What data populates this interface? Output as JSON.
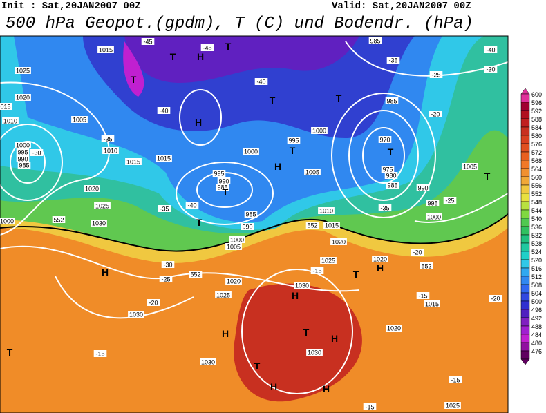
{
  "header": {
    "init": "Init : Sat,20JAN2007 00Z",
    "valid": "Valid: Sat,20JAN2007 00Z",
    "title": "500 hPa Geopot.(gpdm), T (C) und Bodendr. (hPa)"
  },
  "colorbar": {
    "levels": [
      600,
      596,
      592,
      588,
      584,
      580,
      576,
      572,
      568,
      564,
      560,
      556,
      552,
      548,
      544,
      540,
      536,
      532,
      528,
      524,
      520,
      516,
      512,
      508,
      504,
      500,
      496,
      492,
      488,
      484,
      480,
      476
    ],
    "colors": [
      "#e0309a",
      "#a00030",
      "#b01020",
      "#c02020",
      "#c83020",
      "#d84020",
      "#e05020",
      "#e86020",
      "#f07828",
      "#f09030",
      "#f0a838",
      "#f0c840",
      "#e8e040",
      "#b8e040",
      "#80d840",
      "#50c850",
      "#30c060",
      "#20c080",
      "#20c8a0",
      "#20d0c8",
      "#30c8e8",
      "#30a8f0",
      "#3088f0",
      "#3068f0",
      "#3048e0",
      "#3030d0",
      "#5020c0",
      "#8020c0",
      "#a020d0",
      "#c020d0",
      "#9010a0",
      "#600060"
    ]
  },
  "map": {
    "labels": [
      "1015",
      "1025",
      "1020",
      "015",
      "1010",
      "1005",
      "1000",
      "995",
      "990",
      "985",
      "1010",
      "1015",
      "1015",
      "1020",
      "1025",
      "1030",
      "1000",
      "-45",
      "-45",
      "-40",
      "-40",
      "-35",
      "-30",
      "-35",
      "-40",
      "-30",
      "-25",
      "-20",
      "-15",
      "1030",
      "1025",
      "1020",
      "1005",
      "1000",
      "990",
      "985",
      "995",
      "990",
      "985",
      "1000",
      "995",
      "1000",
      "1005",
      "1010",
      "1015",
      "1020",
      "1025",
      "1030",
      "1030",
      "1030",
      "1020",
      "1015",
      "1020",
      "985",
      "985",
      "970",
      "975",
      "980",
      "985",
      "990",
      "995",
      "1000",
      "1005",
      "1025",
      "552",
      "552",
      "552",
      "552",
      "-35",
      "-25",
      "-20",
      "-35",
      "-25",
      "-20",
      "-15",
      "-15",
      "-15",
      "-15",
      "-40",
      "-30",
      "-20",
      "H",
      "T",
      "T",
      "T",
      "H",
      "T",
      "T",
      "H",
      "T",
      "T",
      "T",
      "H",
      "H",
      "H",
      "T",
      "H",
      "T",
      "H",
      "H",
      "T",
      "T",
      "H",
      "T",
      "T"
    ]
  }
}
